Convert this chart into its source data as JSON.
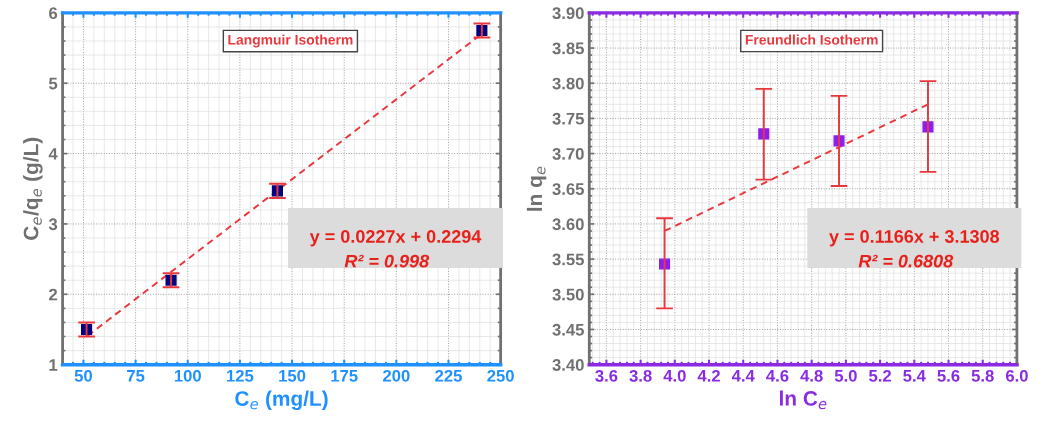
{
  "chart_data": [
    {
      "type": "scatter",
      "xlabel": "C$_{e}$ (mg/L)",
      "ylabel": "C$_{e}$/q$_{e}$ (g/L)",
      "annotations": [
        "Langmuir Isotherm",
        "y = 0.0227x + 0.2294",
        "R² = 0.998"
      ],
      "xlim": [
        40,
        250
      ],
      "ylim": [
        1,
        6
      ],
      "xticks": [
        50,
        75,
        100,
        125,
        150,
        175,
        200,
        225,
        250
      ],
      "yticks": [
        1,
        2,
        3,
        4,
        5,
        6
      ],
      "grid": true,
      "series": [
        {
          "marker": "square",
          "color": "#000080",
          "x": [
            51.5,
            92,
            143,
            241
          ],
          "values": [
            1.5,
            2.2,
            3.47,
            5.75
          ],
          "errors": [
            0.1,
            0.1,
            0.1,
            0.1
          ]
        },
        {
          "type": "line",
          "color": "#e8383d",
          "line_style": "dashed",
          "x": [
            52,
            240
          ],
          "values": [
            1.41,
            5.68
          ]
        }
      ]
    },
    {
      "type": "scatter",
      "xlabel": "ln C$_{e}$",
      "ylabel": "ln q$_{e}$",
      "annotations": [
        "Freundlich Isotherm",
        "y = 0.1166x + 3.1308",
        "R² = 0.6808"
      ],
      "xlim": [
        3.5,
        6.0
      ],
      "ylim": [
        3.4,
        3.9
      ],
      "xticks": [
        {
          "value": 3.6,
          "label": "3.6"
        },
        {
          "value": 3.8,
          "label": "3.8"
        },
        {
          "value": 4.0,
          "label": "4.0"
        },
        {
          "value": 4.2,
          "label": "4.2"
        },
        {
          "value": 4.4,
          "label": "4.4"
        },
        {
          "value": 4.6,
          "label": "4.6"
        },
        {
          "value": 4.8,
          "label": "4.8"
        },
        {
          "value": 5.0,
          "label": "5.0"
        },
        {
          "value": 5.2,
          "label": "5.2"
        },
        {
          "value": 5.4,
          "label": "5.4"
        },
        {
          "value": 5.6,
          "label": "5.6"
        },
        {
          "value": 5.8,
          "label": "5.8"
        },
        {
          "value": 6.0,
          "label": "6.0"
        }
      ],
      "yticks": [
        {
          "value": 3.4,
          "label": "3.40"
        },
        {
          "value": 3.45,
          "label": "3.45"
        },
        {
          "value": 3.5,
          "label": "3.50"
        },
        {
          "value": 3.55,
          "label": "3.55"
        },
        {
          "value": 3.6,
          "label": "3.60"
        },
        {
          "value": 3.65,
          "label": "3.65"
        },
        {
          "value": 3.7,
          "label": "3.70"
        },
        {
          "value": 3.75,
          "label": "3.75"
        },
        {
          "value": 3.8,
          "label": "3.80"
        },
        {
          "value": 3.85,
          "label": "3.85"
        },
        {
          "value": 3.9,
          "label": "3.90"
        }
      ],
      "grid": true,
      "series": [
        {
          "marker": "square",
          "color": "#8b1ef0",
          "x": [
            3.94,
            4.52,
            4.96,
            5.48
          ],
          "values": [
            3.543,
            3.728,
            3.718,
            3.738
          ],
          "errors": [
            [
              3.48,
              3.608
            ],
            [
              3.663,
              3.792
            ],
            [
              3.654,
              3.782
            ],
            [
              3.674,
              3.803
            ]
          ]
        },
        {
          "type": "line",
          "color": "#e8383d",
          "line_style": "dashed",
          "x": [
            3.94,
            5.48
          ],
          "values": [
            3.59,
            3.77
          ]
        }
      ]
    }
  ]
}
